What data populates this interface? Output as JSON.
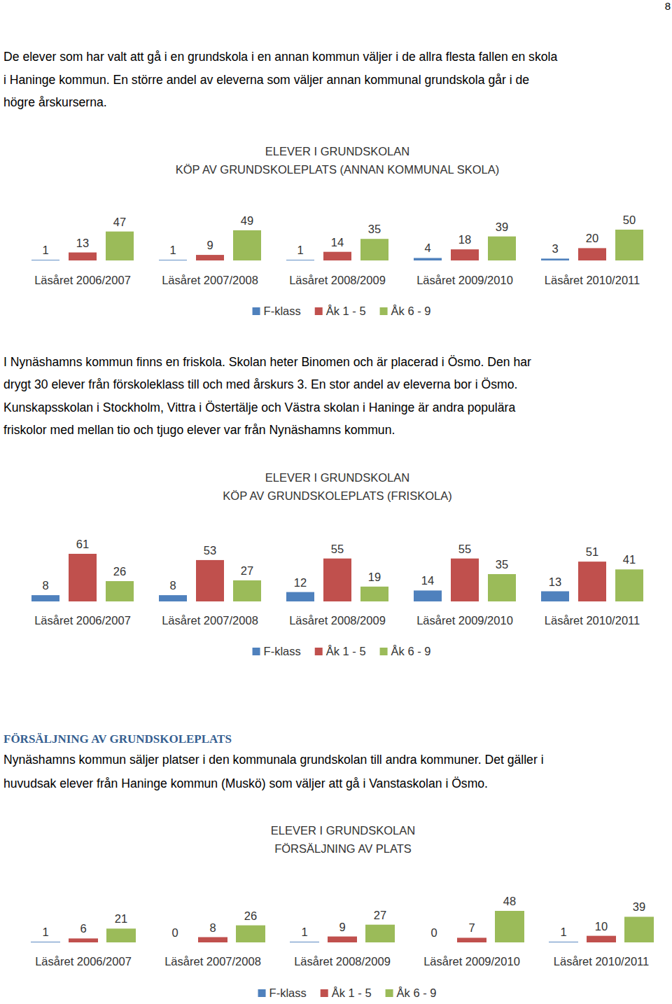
{
  "page_number": 8,
  "paragraphs": [
    {
      "lines": [
        "De elever som har valt att gå i en grundskola i en annan kommun väljer i de allra flesta fallen en skola",
        "i Haninge kommun. En större andel av eleverna som väljer annan kommunal grundskola går i de",
        "högre årskurserna."
      ]
    },
    {
      "lines": [
        "I Nynäshamns kommun finns en friskola. Skolan heter Binomen och är placerad i Ösmo. Den har",
        "drygt 30 elever från förskoleklass till och med årskurs 3. En stor andel av eleverna bor i Ösmo.",
        "Kunskapsskolan i Stockholm, Vittra i Östertälje och Västra skolan i Haninge är andra populära",
        "friskolor med mellan tio och tjugo elever var från Nynäshamns kommun."
      ]
    },
    {
      "lines": [
        "Nynäshamns kommun säljer platser i den kommunala grundskolan till andra kommuner. Det gäller i",
        "huvudsak elever från Haninge kommun (Muskö) som väljer att gå i Vanstaskolan i Ösmo."
      ]
    }
  ],
  "heading": "FÖRSÄLJNING AV GRUNDSKOLEPLATS",
  "chart_data": [
    {
      "type": "bar",
      "title": "ELEVER I GRUNDSKOLAN",
      "subtitle": "KÖP AV GRUNDSKOLEPLATS (ANNAN KOMMUNAL SKOLA)",
      "categories": [
        "Läsåret 2006/2007",
        "Läsåret 2007/2008",
        "Läsåret 2008/2009",
        "Läsåret 2009/2010",
        "Läsåret 2010/2011"
      ],
      "series": [
        {
          "name": "F-klass",
          "color": "#4f81bd",
          "values": [
            1,
            1,
            1,
            4,
            3
          ]
        },
        {
          "name": "Åk 1 - 5",
          "color": "#c0504d",
          "values": [
            13,
            9,
            14,
            18,
            20
          ]
        },
        {
          "name": "Åk 6 - 9",
          "color": "#9bbb59",
          "values": [
            47,
            49,
            35,
            39,
            50
          ]
        }
      ],
      "data_labels": true,
      "tick_labels": "x",
      "legend": "bottom"
    },
    {
      "type": "bar",
      "title": "ELEVER I GRUNDSKOLAN",
      "subtitle": "KÖP AV GRUNDSKOLEPLATS (FRISKOLA)",
      "categories": [
        "Läsåret 2006/2007",
        "Läsåret 2007/2008",
        "Läsåret 2008/2009",
        "Läsåret 2009/2010",
        "Läsåret 2010/2011"
      ],
      "series": [
        {
          "name": "F-klass",
          "color": "#4f81bd",
          "values": [
            8,
            8,
            12,
            14,
            13
          ]
        },
        {
          "name": "Åk 1 - 5",
          "color": "#c0504d",
          "values": [
            61,
            53,
            55,
            55,
            51
          ]
        },
        {
          "name": "Åk 6 - 9",
          "color": "#9bbb59",
          "values": [
            26,
            27,
            19,
            35,
            41
          ]
        }
      ],
      "data_labels": true,
      "tick_labels": "x",
      "legend": "bottom"
    },
    {
      "type": "bar",
      "title": "ELEVER I GRUNDSKOLAN",
      "subtitle": "FÖRSÄLJNING AV PLATS",
      "categories": [
        "Läsåret 2006/2007",
        "Läsåret 2007/2008",
        "Läsåret 2008/2009",
        "Läsåret 2009/2010",
        "Läsåret 2010/2011"
      ],
      "series": [
        {
          "name": "F-klass",
          "color": "#4f81bd",
          "values": [
            1,
            0,
            1,
            0,
            1
          ]
        },
        {
          "name": "Åk 1 - 5",
          "color": "#c0504d",
          "values": [
            6,
            8,
            9,
            7,
            10
          ]
        },
        {
          "name": "Åk 6 - 9",
          "color": "#9bbb59",
          "values": [
            21,
            26,
            27,
            48,
            39
          ]
        }
      ],
      "data_labels": true,
      "tick_labels": "x",
      "legend": "bottom"
    }
  ]
}
